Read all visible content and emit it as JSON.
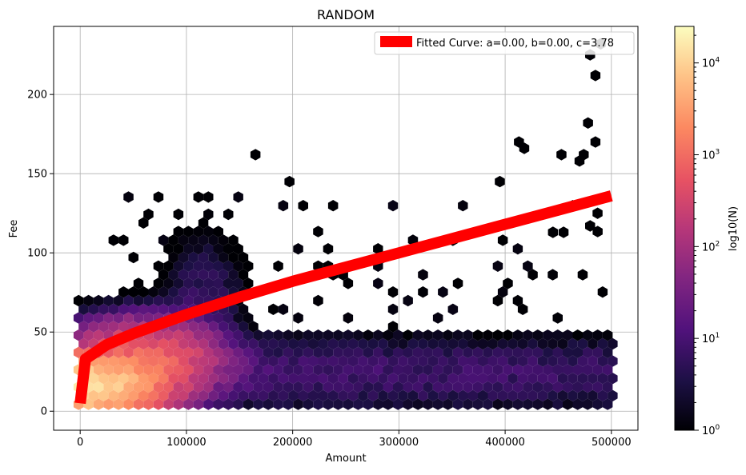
{
  "chart_data": {
    "type": "heatmap",
    "subtype": "hexbin",
    "title": "RANDOM",
    "xlabel": "Amount",
    "ylabel": "Fee",
    "xlim": [
      -25000,
      525000
    ],
    "ylim": [
      -12,
      243
    ],
    "x_ticks": [
      0,
      100000,
      200000,
      300000,
      400000,
      500000
    ],
    "x_tick_labels": [
      "0",
      "100000",
      "200000",
      "300000",
      "400000",
      "500000"
    ],
    "y_ticks": [
      0,
      50,
      100,
      150,
      200
    ],
    "y_tick_labels": [
      "0",
      "50",
      "100",
      "150",
      "200"
    ],
    "grid": true,
    "colormap": "magma",
    "colorbar": {
      "label": "log10(N)",
      "scale": "log",
      "range": [
        1,
        25000
      ],
      "ticks": [
        {
          "base": "10",
          "exp": "0",
          "value": 1
        },
        {
          "base": "10",
          "exp": "1",
          "value": 10
        },
        {
          "base": "10",
          "exp": "2",
          "value": 100
        },
        {
          "base": "10",
          "exp": "3",
          "value": 1000
        },
        {
          "base": "10",
          "exp": "4",
          "value": 10000
        }
      ]
    },
    "hexbin_density_regions": [
      {
        "x_range": [
          0,
          500000
        ],
        "y_range": [
          5,
          50
        ],
        "count_range": [
          1,
          100
        ]
      },
      {
        "x_range": [
          0,
          80000
        ],
        "y_range": [
          5,
          35
        ],
        "count_range": [
          1000,
          20000
        ]
      },
      {
        "x_range": [
          60000,
          160000
        ],
        "y_range": [
          50,
          135
        ],
        "count_range": [
          1,
          20
        ]
      }
    ],
    "series": [
      {
        "name": "Fitted Curve: a=0.00, b=0.00, c=3.78",
        "type": "line",
        "color": "#ff0000",
        "x": [
          0,
          5000,
          25000,
          50000,
          100000,
          150000,
          200000,
          250000,
          300000,
          350000,
          400000,
          450000,
          500000
        ],
        "y": [
          5,
          33,
          42,
          49,
          61,
          72,
          82,
          91,
          100,
          109,
          118,
          127,
          136
        ]
      }
    ],
    "legend": {
      "position": "top-right"
    }
  }
}
